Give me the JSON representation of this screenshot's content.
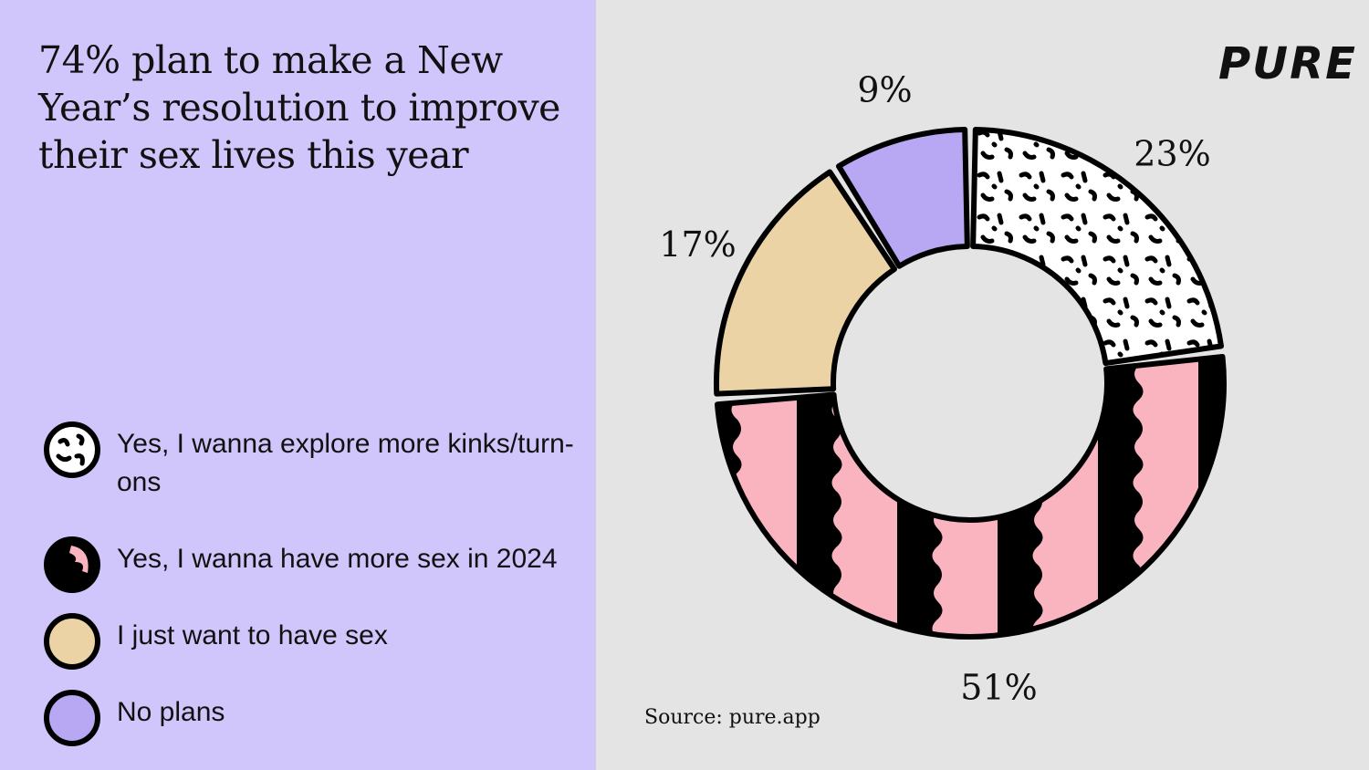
{
  "chart_data": {
    "type": "pie",
    "variant": "donut",
    "title": "74% plan to make a New Year's resolution to improve their sex lives this year",
    "categories": [
      "Yes, I wanna explore more kinks/turn-ons",
      "Yes, I wanna have more sex in 2024",
      "I just want to have sex",
      "No plans"
    ],
    "values": [
      23,
      51,
      17,
      9
    ],
    "data_labels": [
      "23%",
      "51%",
      "17%",
      "9%"
    ],
    "colors": [
      "#ffffff",
      "#f9b4c0",
      "#ecd3a6",
      "#b8a8f4"
    ],
    "patterns": [
      "black-dots",
      "black-waves",
      "solid",
      "solid"
    ],
    "legend_position": "left"
  },
  "title": "74% plan to make a New Year’s resolution to improve their sex lives this year",
  "legend": [
    {
      "label": "Yes, I wanna explore more kinks/turn-ons"
    },
    {
      "label": "Yes, I wanna have more sex in 2024"
    },
    {
      "label": "I just want to have sex"
    },
    {
      "label": "No plans"
    }
  ],
  "logo": "PURE",
  "source": "Source: pure.app",
  "colors": {
    "left_panel": "#d0c6fb",
    "right_panel": "#e4e4e4"
  }
}
